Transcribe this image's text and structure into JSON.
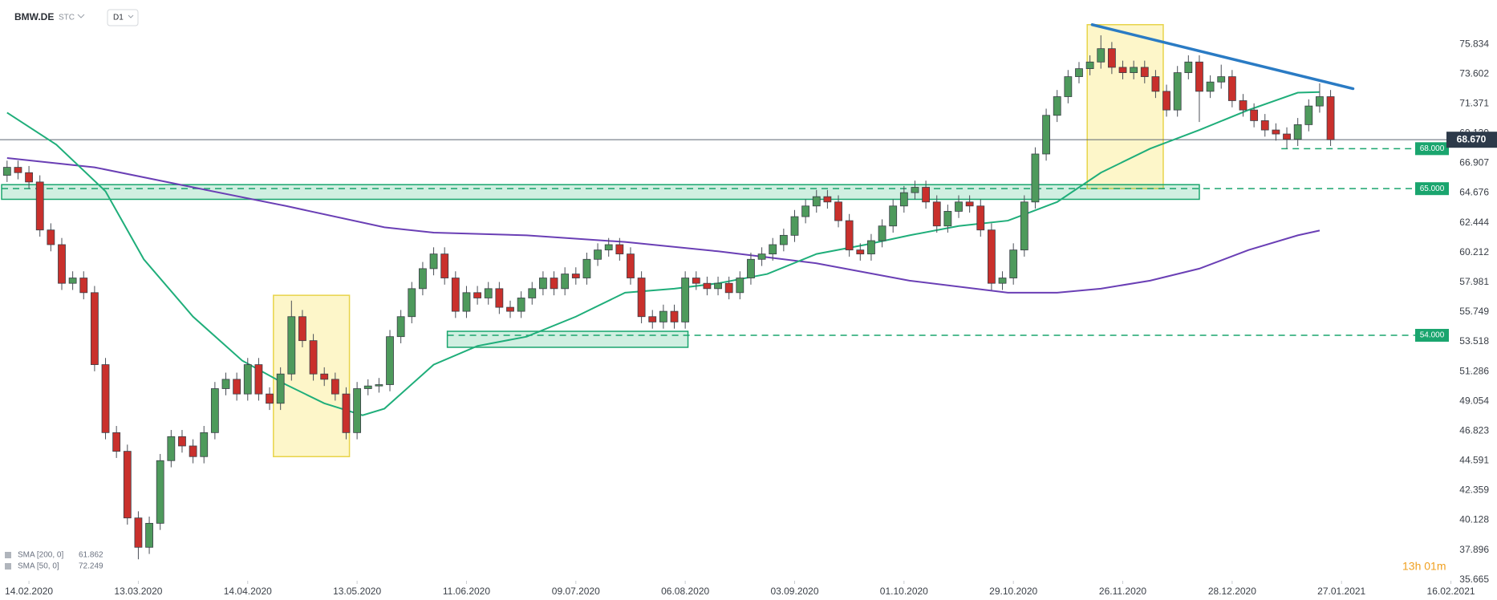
{
  "header": {
    "symbol": "BMW.DE",
    "market": "STC",
    "interval": "D1"
  },
  "countdown": "13h 01m",
  "chart_data": {
    "type": "candlestick",
    "xlim": [
      -5,
      263
    ],
    "ylim": [
      35.59,
      79.15
    ],
    "xticks": [
      {
        "value": 0,
        "label": "14.02.2020"
      },
      {
        "value": 20,
        "label": "13.03.2020"
      },
      {
        "value": 40,
        "label": "14.04.2020"
      },
      {
        "value": 60,
        "label": "13.05.2020"
      },
      {
        "value": 80,
        "label": "11.06.2020"
      },
      {
        "value": 100,
        "label": "09.07.2020"
      },
      {
        "value": 120,
        "label": "06.08.2020"
      },
      {
        "value": 140,
        "label": "03.09.2020"
      },
      {
        "value": 160,
        "label": "01.10.2020"
      },
      {
        "value": 180,
        "label": "29.10.2020"
      },
      {
        "value": 200,
        "label": "26.11.2020"
      },
      {
        "value": 220,
        "label": "28.12.2020"
      },
      {
        "value": 240,
        "label": "27.01.2021"
      },
      {
        "value": 260,
        "label": "16.02.2021"
      }
    ],
    "yticks": [
      75.834,
      73.602,
      71.371,
      69.139,
      66.907,
      64.676,
      62.444,
      60.212,
      57.981,
      55.749,
      53.518,
      51.286,
      49.054,
      46.823,
      44.591,
      42.359,
      40.128,
      37.896,
      35.665
    ],
    "up_color": "#4e9a5c",
    "down_color": "#c9302c",
    "x": [
      -4,
      -2,
      0,
      2,
      4,
      6,
      8,
      10,
      12,
      14,
      16,
      18,
      20,
      22,
      24,
      26,
      28,
      30,
      32,
      34,
      36,
      38,
      40,
      42,
      44,
      46,
      48,
      50,
      52,
      54,
      56,
      58,
      60,
      62,
      64,
      66,
      68,
      70,
      72,
      74,
      76,
      78,
      80,
      82,
      84,
      86,
      88,
      90,
      92,
      94,
      96,
      98,
      100,
      102,
      104,
      106,
      108,
      110,
      112,
      114,
      116,
      118,
      120,
      122,
      124,
      126,
      128,
      130,
      132,
      134,
      136,
      138,
      140,
      142,
      144,
      146,
      148,
      150,
      152,
      154,
      156,
      158,
      160,
      162,
      164,
      166,
      168,
      170,
      172,
      174,
      176,
      178,
      180,
      182,
      184,
      186,
      188,
      190,
      192,
      194,
      196,
      198,
      200,
      202,
      204,
      206,
      208,
      210,
      212,
      214,
      216,
      218,
      220,
      222,
      224,
      226,
      228,
      230,
      232,
      234,
      236,
      238
    ],
    "open": [
      66.0,
      66.6,
      66.2,
      65.5,
      61.9,
      60.8,
      57.9,
      58.3,
      57.2,
      51.8,
      46.7,
      45.3,
      40.3,
      38.1,
      39.9,
      44.6,
      46.4,
      45.7,
      44.9,
      46.7,
      50.0,
      50.7,
      49.6,
      51.8,
      49.6,
      48.9,
      51.1,
      55.4,
      53.6,
      51.1,
      50.7,
      49.6,
      46.7,
      50.0,
      50.2,
      50.3,
      53.9,
      55.4,
      57.5,
      59.0,
      60.1,
      58.3,
      55.8,
      57.2,
      56.8,
      57.5,
      56.1,
      55.8,
      56.8,
      57.5,
      58.3,
      57.5,
      58.6,
      58.3,
      59.7,
      60.4,
      60.8,
      60.1,
      58.3,
      55.4,
      55.0,
      55.8,
      55.0,
      58.3,
      57.9,
      57.5,
      57.9,
      57.2,
      58.3,
      59.7,
      60.1,
      60.8,
      61.5,
      62.9,
      63.7,
      64.4,
      64.0,
      62.6,
      60.4,
      60.1,
      61.1,
      62.2,
      63.7,
      64.7,
      65.1,
      64.0,
      62.2,
      63.3,
      64.0,
      63.7,
      61.9,
      57.9,
      58.3,
      60.4,
      64.0,
      67.6,
      70.5,
      71.9,
      73.4,
      74.0,
      74.5,
      75.5,
      74.1,
      73.7,
      74.1,
      73.4,
      72.3,
      70.9,
      73.7,
      74.5,
      72.3,
      73.0,
      73.4,
      71.6,
      70.9,
      70.1,
      69.4,
      69.1,
      68.7,
      69.8,
      71.2,
      71.9
    ],
    "high": [
      67.1,
      67.1,
      66.7,
      66.0,
      62.4,
      61.3,
      58.8,
      58.8,
      57.7,
      52.3,
      47.2,
      45.8,
      40.8,
      40.4,
      45.1,
      46.9,
      46.9,
      46.2,
      47.2,
      50.5,
      51.2,
      51.2,
      52.3,
      52.3,
      50.1,
      51.6,
      56.6,
      55.9,
      54.1,
      51.6,
      51.2,
      50.1,
      50.5,
      50.7,
      50.8,
      54.4,
      55.9,
      58.0,
      59.5,
      60.6,
      60.6,
      58.8,
      57.7,
      57.7,
      58.0,
      58.0,
      56.6,
      57.3,
      58.0,
      58.8,
      58.8,
      59.1,
      59.1,
      60.2,
      60.9,
      61.3,
      61.3,
      60.6,
      58.8,
      55.9,
      56.3,
      56.3,
      58.8,
      58.8,
      58.4,
      58.4,
      58.4,
      58.8,
      60.2,
      60.6,
      61.3,
      62.0,
      63.4,
      64.2,
      64.9,
      64.9,
      64.5,
      63.1,
      60.9,
      61.6,
      62.7,
      64.2,
      65.2,
      65.6,
      65.6,
      64.5,
      63.8,
      64.5,
      64.5,
      64.2,
      62.4,
      58.8,
      60.9,
      64.5,
      68.1,
      71.0,
      72.4,
      73.9,
      74.5,
      75.0,
      76.5,
      76.0,
      74.6,
      74.6,
      74.6,
      73.9,
      72.8,
      74.2,
      75.0,
      75.0,
      73.5,
      74.3,
      73.9,
      72.1,
      71.4,
      70.6,
      69.9,
      69.6,
      70.3,
      71.7,
      72.9,
      72.4
    ],
    "low": [
      65.5,
      65.7,
      65.0,
      61.4,
      60.3,
      57.4,
      57.4,
      56.7,
      51.3,
      46.2,
      44.8,
      39.8,
      37.2,
      37.6,
      39.4,
      44.1,
      45.2,
      44.4,
      44.4,
      46.2,
      49.5,
      49.1,
      49.1,
      49.1,
      48.4,
      48.4,
      50.6,
      53.1,
      50.6,
      50.2,
      49.1,
      46.2,
      46.2,
      49.5,
      49.7,
      49.8,
      53.4,
      54.9,
      57.0,
      58.5,
      57.8,
      55.3,
      55.3,
      56.3,
      56.3,
      55.6,
      55.3,
      55.3,
      56.3,
      57.0,
      57.0,
      57.0,
      57.8,
      57.8,
      59.2,
      59.9,
      59.6,
      57.8,
      54.9,
      54.5,
      54.5,
      54.5,
      54.5,
      57.4,
      57.0,
      57.0,
      56.7,
      56.7,
      57.8,
      59.2,
      59.6,
      60.3,
      61.0,
      62.4,
      63.2,
      63.5,
      62.1,
      59.9,
      59.6,
      59.6,
      60.6,
      61.7,
      63.2,
      64.2,
      63.5,
      61.7,
      61.7,
      62.8,
      63.2,
      61.4,
      57.4,
      57.4,
      57.8,
      59.9,
      63.5,
      67.1,
      70.0,
      71.4,
      72.9,
      73.5,
      74.0,
      73.6,
      73.2,
      73.2,
      72.9,
      71.8,
      70.4,
      70.4,
      73.2,
      70.0,
      71.8,
      72.5,
      71.1,
      70.4,
      69.6,
      68.9,
      68.6,
      68.0,
      68.2,
      69.3,
      70.7,
      68.2
    ],
    "close": [
      66.6,
      66.2,
      65.5,
      61.9,
      60.8,
      57.9,
      58.3,
      57.2,
      51.8,
      46.7,
      45.3,
      40.3,
      38.1,
      39.9,
      44.6,
      46.4,
      45.7,
      44.9,
      46.7,
      50.0,
      50.7,
      49.6,
      51.8,
      49.6,
      48.9,
      51.1,
      55.4,
      53.6,
      51.1,
      50.7,
      49.6,
      46.7,
      50.0,
      50.2,
      50.3,
      53.9,
      55.4,
      57.5,
      59.0,
      60.1,
      58.3,
      55.8,
      57.2,
      56.8,
      57.5,
      56.1,
      55.8,
      56.8,
      57.5,
      58.3,
      57.5,
      58.6,
      58.3,
      59.7,
      60.4,
      60.8,
      60.1,
      58.3,
      55.4,
      55.0,
      55.8,
      55.0,
      58.3,
      57.9,
      57.5,
      57.9,
      57.2,
      58.3,
      59.7,
      60.1,
      60.8,
      61.5,
      62.9,
      63.7,
      64.4,
      64.0,
      62.6,
      60.4,
      60.1,
      61.1,
      62.2,
      63.7,
      64.7,
      65.1,
      64.0,
      62.2,
      63.3,
      64.0,
      63.7,
      61.9,
      57.9,
      58.3,
      60.4,
      64.0,
      67.6,
      70.5,
      71.9,
      73.4,
      74.0,
      74.5,
      75.5,
      74.1,
      73.7,
      74.1,
      73.4,
      72.3,
      70.9,
      73.7,
      74.5,
      72.3,
      73.0,
      73.4,
      71.6,
      70.9,
      70.1,
      69.4,
      69.1,
      68.7,
      69.8,
      71.2,
      71.9,
      68.67
    ],
    "indicators": [
      {
        "name": "SMA [200, 0]",
        "last": 61.862,
        "color": "#6a3fb5",
        "x": [
          -4,
          12,
          30,
          47,
          65,
          74,
          91,
          109,
          126,
          144,
          161,
          179,
          188,
          196,
          205,
          214,
          223,
          232,
          236
        ],
        "values": [
          67.3,
          66.6,
          65.1,
          63.7,
          62.1,
          61.7,
          61.5,
          61.0,
          60.3,
          59.4,
          58.1,
          57.2,
          57.2,
          57.5,
          58.1,
          59.0,
          60.4,
          61.5,
          61.862
        ]
      },
      {
        "name": "SMA [50, 0]",
        "last": 72.249,
        "color": "#1fae7a",
        "x": [
          -4,
          5,
          14,
          21,
          30,
          39,
          47,
          54,
          61,
          65,
          74,
          82,
          91,
          100,
          109,
          118,
          126,
          135,
          144,
          153,
          161,
          170,
          179,
          188,
          196,
          205,
          214,
          223,
          232,
          236
        ],
        "values": [
          70.7,
          68.3,
          64.8,
          59.7,
          55.4,
          52.1,
          50.3,
          48.9,
          48.0,
          48.5,
          51.8,
          53.2,
          53.9,
          55.4,
          57.2,
          57.5,
          57.9,
          58.6,
          60.1,
          60.8,
          61.5,
          62.2,
          62.6,
          64.0,
          66.2,
          68.0,
          69.4,
          70.9,
          72.2,
          72.249
        ]
      }
    ],
    "last_price": {
      "value": 68.67,
      "label": "68.670"
    },
    "levels": [
      {
        "value": 68,
        "label": "68.000",
        "x_start": 229
      },
      {
        "value": 65,
        "label": "65.000",
        "x_start": -5
      },
      {
        "value": 54,
        "label": "54.000",
        "x_start": 76.5
      }
    ],
    "zones": [
      {
        "x": [
          -5,
          214
        ],
        "y": [
          64.2,
          65.3
        ]
      },
      {
        "x": [
          76.5,
          120.5
        ],
        "y": [
          53.1,
          54.3
        ]
      }
    ],
    "highlights": [
      {
        "x": [
          44.7,
          58.6
        ],
        "y": [
          44.9,
          57.0
        ]
      },
      {
        "x": [
          193.5,
          207.4
        ],
        "y": [
          65.0,
          77.3
        ]
      }
    ],
    "trendline": {
      "x": [
        194.4,
        242.1
      ],
      "y": [
        77.3,
        72.5
      ]
    }
  }
}
